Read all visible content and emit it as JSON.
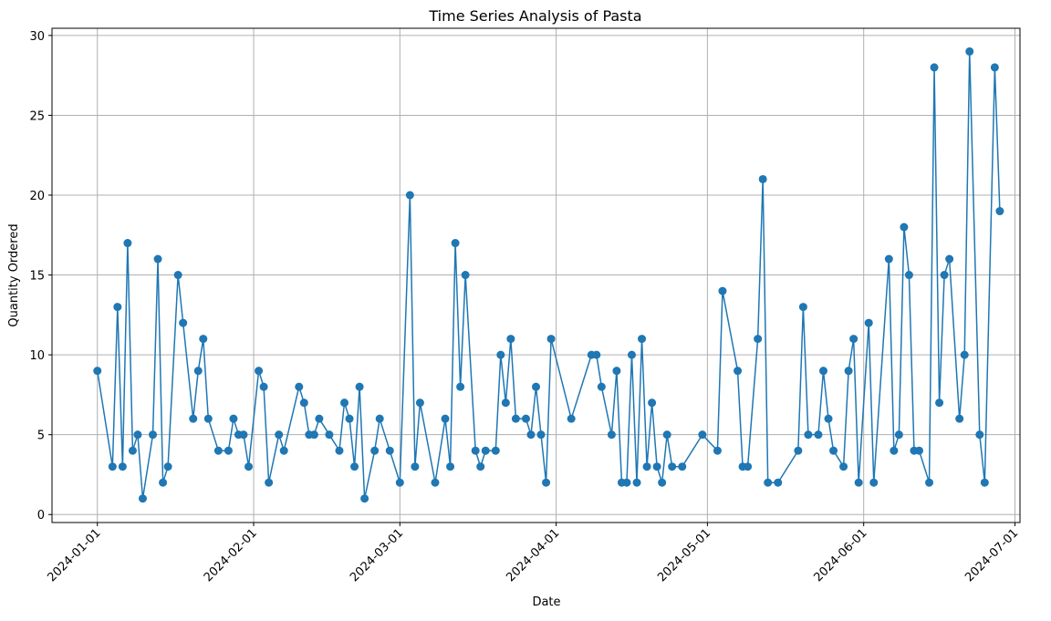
{
  "chart_data": {
    "type": "line",
    "title": "Time Series Analysis of Pasta",
    "x_label": "Date",
    "y_label": "Quantity Ordered",
    "x": [
      "2024-01-01",
      "2024-01-04",
      "2024-01-05",
      "2024-01-06",
      "2024-01-07",
      "2024-01-08",
      "2024-01-09",
      "2024-01-10",
      "2024-01-12",
      "2024-01-13",
      "2024-01-14",
      "2024-01-15",
      "2024-01-17",
      "2024-01-18",
      "2024-01-20",
      "2024-01-21",
      "2024-01-22",
      "2024-01-23",
      "2024-01-25",
      "2024-01-27",
      "2024-01-28",
      "2024-01-29",
      "2024-01-30",
      "2024-01-31",
      "2024-02-02",
      "2024-02-03",
      "2024-02-04",
      "2024-02-06",
      "2024-02-07",
      "2024-02-10",
      "2024-02-11",
      "2024-02-12",
      "2024-02-13",
      "2024-02-14",
      "2024-02-16",
      "2024-02-18",
      "2024-02-19",
      "2024-02-20",
      "2024-02-21",
      "2024-02-22",
      "2024-02-23",
      "2024-02-25",
      "2024-02-26",
      "2024-02-28",
      "2024-03-01",
      "2024-03-03",
      "2024-03-04",
      "2024-03-05",
      "2024-03-08",
      "2024-03-10",
      "2024-03-11",
      "2024-03-12",
      "2024-03-13",
      "2024-03-14",
      "2024-03-16",
      "2024-03-17",
      "2024-03-18",
      "2024-03-20",
      "2024-03-21",
      "2024-03-22",
      "2024-03-23",
      "2024-03-24",
      "2024-03-26",
      "2024-03-27",
      "2024-03-28",
      "2024-03-29",
      "2024-03-30",
      "2024-03-31",
      "2024-04-04",
      "2024-04-08",
      "2024-04-09",
      "2024-04-10",
      "2024-04-12",
      "2024-04-13",
      "2024-04-14",
      "2024-04-15",
      "2024-04-16",
      "2024-04-17",
      "2024-04-18",
      "2024-04-19",
      "2024-04-20",
      "2024-04-21",
      "2024-04-22",
      "2024-04-23",
      "2024-04-24",
      "2024-04-26",
      "2024-04-30",
      "2024-05-03",
      "2024-05-04",
      "2024-05-07",
      "2024-05-08",
      "2024-05-09",
      "2024-05-11",
      "2024-05-12",
      "2024-05-13",
      "2024-05-15",
      "2024-05-19",
      "2024-05-20",
      "2024-05-21",
      "2024-05-23",
      "2024-05-24",
      "2024-05-25",
      "2024-05-26",
      "2024-05-28",
      "2024-05-29",
      "2024-05-30",
      "2024-05-31",
      "2024-06-02",
      "2024-06-03",
      "2024-06-06",
      "2024-06-07",
      "2024-06-08",
      "2024-06-09",
      "2024-06-10",
      "2024-06-11",
      "2024-06-12",
      "2024-06-14",
      "2024-06-15",
      "2024-06-16",
      "2024-06-17",
      "2024-06-18",
      "2024-06-20",
      "2024-06-21",
      "2024-06-22",
      "2024-06-24",
      "2024-06-25",
      "2024-06-27",
      "2024-06-28"
    ],
    "values": [
      9,
      3,
      13,
      3,
      17,
      4,
      5,
      1,
      5,
      16,
      2,
      3,
      15,
      12,
      6,
      9,
      11,
      6,
      4,
      4,
      6,
      5,
      5,
      3,
      9,
      8,
      2,
      5,
      4,
      8,
      7,
      5,
      5,
      6,
      5,
      4,
      7,
      6,
      3,
      8,
      1,
      4,
      6,
      4,
      2,
      20,
      3,
      7,
      2,
      6,
      3,
      17,
      8,
      15,
      4,
      3,
      4,
      4,
      10,
      7,
      11,
      6,
      6,
      5,
      8,
      5,
      2,
      11,
      6,
      10,
      10,
      8,
      5,
      9,
      2,
      2,
      10,
      2,
      11,
      3,
      7,
      3,
      2,
      5,
      3,
      3,
      5,
      4,
      14,
      9,
      3,
      3,
      11,
      21,
      2,
      2,
      4,
      13,
      5,
      5,
      9,
      6,
      4,
      3,
      9,
      11,
      2,
      12,
      2,
      16,
      4,
      5,
      18,
      15,
      4,
      4,
      2,
      28,
      7,
      15,
      16,
      6,
      10,
      29,
      5,
      2,
      28,
      19
    ],
    "color": "#1f77b4",
    "xlim": [
      "2023-12-23",
      "2024-07-02"
    ],
    "xticks": [
      "2024-01-01",
      "2024-02-01",
      "2024-03-01",
      "2024-04-01",
      "2024-05-01",
      "2024-06-01",
      "2024-07-01"
    ],
    "ylim": [
      -0.5,
      30.45
    ],
    "yticks": [
      0,
      5,
      10,
      15,
      20,
      25,
      30
    ],
    "grid": true
  }
}
